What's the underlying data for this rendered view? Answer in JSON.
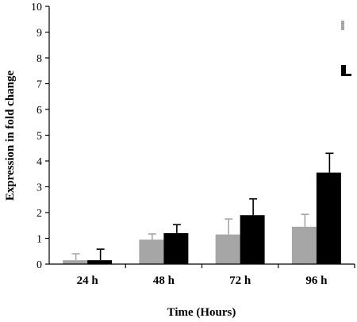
{
  "chart_data": {
    "type": "bar",
    "xlabel": "Time (Hours)",
    "ylabel": "Expression in fold change",
    "ylim": [
      0,
      10
    ],
    "yticks": [
      "0",
      "1",
      "2",
      "3",
      "4",
      "5",
      "6",
      "7",
      "8",
      "9",
      "10"
    ],
    "categories": [
      "24 h",
      "48 h",
      "72 h",
      "96 h"
    ],
    "series": [
      {
        "color": "#a6a6a6",
        "values": [
          0.15,
          0.95,
          1.15,
          1.45
        ],
        "errors": [
          0.25,
          0.22,
          0.6,
          0.48
        ]
      },
      {
        "color": "#000000",
        "values": [
          0.15,
          1.2,
          1.9,
          3.55
        ],
        "errors": [
          0.43,
          0.33,
          0.63,
          0.75
        ]
      }
    ],
    "legend": {
      "placement": "top-right",
      "entries": [
        "",
        ""
      ]
    },
    "grid": false
  }
}
